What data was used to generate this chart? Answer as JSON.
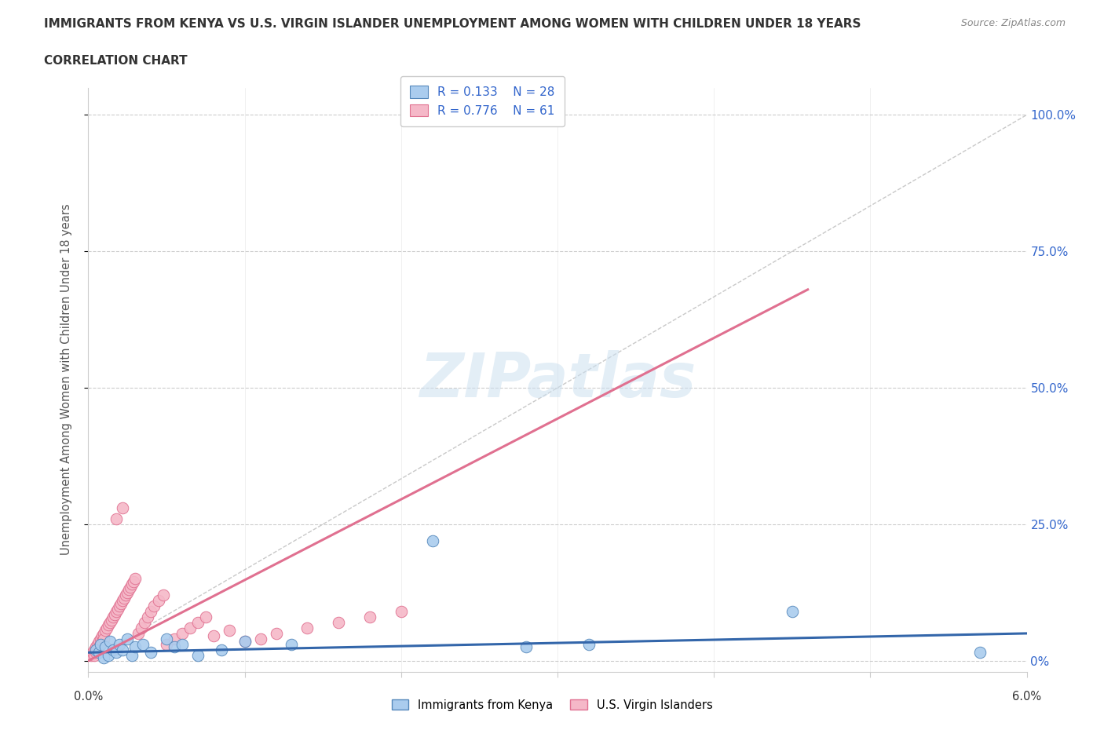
{
  "title": "IMMIGRANTS FROM KENYA VS U.S. VIRGIN ISLANDER UNEMPLOYMENT AMONG WOMEN WITH CHILDREN UNDER 18 YEARS",
  "subtitle": "CORRELATION CHART",
  "source": "Source: ZipAtlas.com",
  "ylabel": "Unemployment Among Women with Children Under 18 years",
  "xlim": [
    0.0,
    6.0
  ],
  "ylim": [
    -2.0,
    105.0
  ],
  "grid_color": "#cccccc",
  "bg_color": "#ffffff",
  "kenya_color": "#aaccee",
  "kenya_edge_color": "#5588bb",
  "kenya_line_color": "#3366aa",
  "virgin_color": "#f5b8c8",
  "virgin_edge_color": "#e07090",
  "virgin_line_color": "#e07090",
  "diag_line_color": "#bbbbbb",
  "kenya_scatter_x": [
    0.05,
    0.07,
    0.08,
    0.1,
    0.11,
    0.13,
    0.14,
    0.16,
    0.18,
    0.2,
    0.22,
    0.25,
    0.28,
    0.3,
    0.35,
    0.4,
    0.5,
    0.55,
    0.6,
    0.7,
    0.85,
    1.0,
    1.3,
    2.2,
    2.8,
    3.2,
    4.5,
    5.7
  ],
  "kenya_scatter_y": [
    2.0,
    1.5,
    3.0,
    0.5,
    2.5,
    1.0,
    3.5,
    2.0,
    1.5,
    3.0,
    2.0,
    4.0,
    1.0,
    2.5,
    3.0,
    1.5,
    4.0,
    2.5,
    3.0,
    1.0,
    2.0,
    3.5,
    3.0,
    22.0,
    2.5,
    3.0,
    9.0,
    1.5
  ],
  "virgin_scatter_x": [
    0.02,
    0.03,
    0.04,
    0.04,
    0.05,
    0.05,
    0.06,
    0.06,
    0.07,
    0.07,
    0.08,
    0.08,
    0.09,
    0.09,
    0.1,
    0.1,
    0.11,
    0.12,
    0.13,
    0.14,
    0.15,
    0.16,
    0.17,
    0.18,
    0.19,
    0.2,
    0.21,
    0.22,
    0.23,
    0.24,
    0.25,
    0.26,
    0.27,
    0.28,
    0.29,
    0.3,
    0.32,
    0.34,
    0.36,
    0.38,
    0.4,
    0.42,
    0.45,
    0.48,
    0.5,
    0.55,
    0.6,
    0.65,
    0.7,
    0.75,
    0.8,
    0.9,
    1.0,
    1.1,
    1.2,
    1.4,
    1.6,
    1.8,
    2.0,
    0.18,
    0.22
  ],
  "virgin_scatter_y": [
    1.0,
    1.5,
    2.0,
    1.0,
    2.5,
    1.5,
    3.0,
    2.0,
    3.5,
    2.5,
    4.0,
    3.0,
    4.5,
    3.5,
    5.0,
    4.0,
    5.5,
    6.0,
    6.5,
    7.0,
    7.5,
    8.0,
    8.5,
    9.0,
    9.5,
    10.0,
    10.5,
    11.0,
    11.5,
    12.0,
    12.5,
    13.0,
    13.5,
    14.0,
    14.5,
    15.0,
    5.0,
    6.0,
    7.0,
    8.0,
    9.0,
    10.0,
    11.0,
    12.0,
    3.0,
    4.0,
    5.0,
    6.0,
    7.0,
    8.0,
    4.5,
    5.5,
    3.5,
    4.0,
    5.0,
    6.0,
    7.0,
    8.0,
    9.0,
    26.0,
    28.0
  ],
  "kenya_trend_x": [
    0.0,
    6.0
  ],
  "kenya_trend_y": [
    1.5,
    5.0
  ],
  "virgin_trend_x": [
    0.0,
    4.6
  ],
  "virgin_trend_y": [
    0.0,
    68.0
  ]
}
